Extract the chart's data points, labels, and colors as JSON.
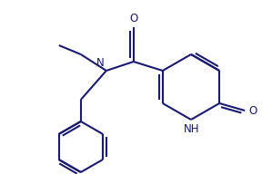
{
  "bg_color": "#ffffff",
  "line_color": "#1a1a6e",
  "line_width": 1.5,
  "font_size": 8.5,
  "figsize": [
    2.88,
    1.92
  ],
  "dpi": 100,
  "aspect": "auto",
  "xlim": [
    0,
    288
  ],
  "ylim": [
    0,
    192
  ]
}
